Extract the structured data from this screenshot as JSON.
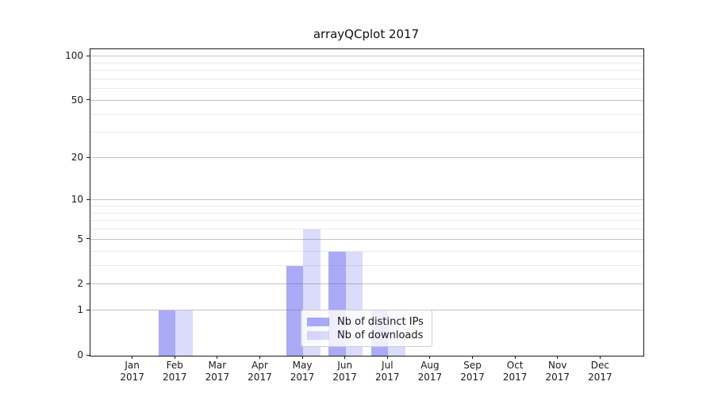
{
  "chart_data": {
    "type": "bar",
    "title": "arrayQCplot 2017",
    "categories": [
      "Jan 2017",
      "Feb 2017",
      "Mar 2017",
      "Apr 2017",
      "May 2017",
      "Jun 2017",
      "Jul 2017",
      "Aug 2017",
      "Sep 2017",
      "Oct 2017",
      "Nov 2017",
      "Dec 2017"
    ],
    "series": [
      {
        "name": "Nb of distinct IPs",
        "values": [
          0,
          1,
          0,
          0,
          3,
          4,
          1,
          0,
          0,
          0,
          0,
          0
        ],
        "color": "rgba(85,85,240,0.50)"
      },
      {
        "name": "Nb of downloads",
        "values": [
          0,
          1,
          0,
          0,
          6,
          4,
          1,
          0,
          0,
          0,
          0,
          0
        ],
        "color": "rgba(85,85,240,0.21)"
      }
    ],
    "xlabel": "",
    "ylabel": "",
    "y_scale": "log1p",
    "ylim": [
      0,
      101
    ],
    "y_ticks": [
      0,
      1,
      2,
      5,
      10,
      20,
      50,
      100
    ],
    "y_minor_ticks": [
      3,
      4,
      6,
      7,
      8,
      9,
      30,
      40,
      60,
      70,
      80,
      90
    ],
    "grid": "horizontal",
    "legend_position": "lower center"
  },
  "colors": {
    "bar_ips": "rgba(85,85,240,0.50)",
    "bar_downloads": "rgba(85,85,240,0.21)",
    "grid_major": "#c3c3c3",
    "grid_minor": "#e9e9e9",
    "spine": "#1a1a1a",
    "text": "#1a1a1a",
    "legend_border": "#cccccc",
    "legend_bg": "rgba(255,255,255,0.8)"
  }
}
